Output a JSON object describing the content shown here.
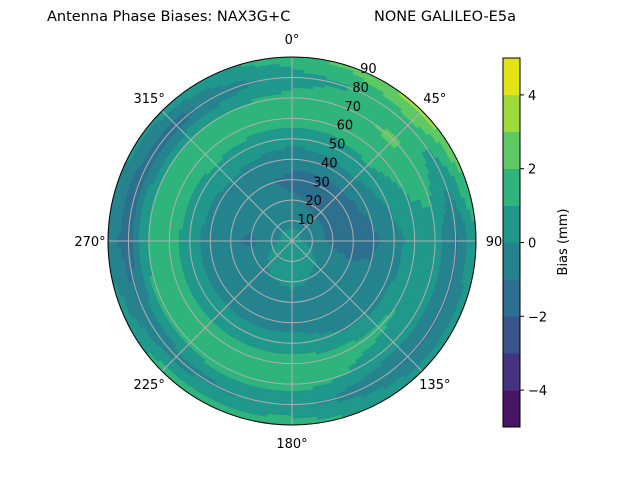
{
  "chart_data": {
    "type": "polar-contour",
    "title_left": "Antenna Phase Biases: NAX3G+C",
    "title_right": "NONE GALILEO-E5a",
    "theta_zero": "top",
    "theta_direction": "clockwise",
    "theta_tick_labels": [
      "0°",
      "45°",
      "90",
      "135°",
      "180°",
      "225°",
      "270°",
      "315°"
    ],
    "theta_ticks_deg": [
      0,
      45,
      90,
      135,
      180,
      225,
      270,
      315
    ],
    "r_ticks": [
      10,
      20,
      30,
      40,
      50,
      60,
      70,
      80,
      90
    ],
    "r_tick_labels": [
      "10",
      "20",
      "30",
      "40",
      "50",
      "60",
      "70",
      "80",
      "90"
    ],
    "rlim": [
      0,
      90
    ],
    "grid": true,
    "azimuth_deg": [
      0,
      45,
      90,
      135,
      180,
      225,
      270,
      315
    ],
    "zenith_deg": [
      0,
      10,
      20,
      30,
      40,
      50,
      60,
      70,
      80,
      90
    ],
    "bias_mm": [
      [
        0.5,
        0.5,
        0.5,
        0.5,
        0.5,
        0.5,
        0.5,
        0.5
      ],
      [
        -0.3,
        -0.5,
        -0.5,
        0.5,
        0.7,
        0.5,
        -0.3,
        -0.3
      ],
      [
        -0.8,
        -1.3,
        -1.2,
        -0.3,
        0.3,
        -0.2,
        -1.2,
        -0.5
      ],
      [
        -1.3,
        -1.4,
        -1.3,
        -0.6,
        -0.5,
        -0.5,
        -0.8,
        -0.5
      ],
      [
        -0.5,
        -0.5,
        -1.2,
        -0.5,
        -0.5,
        -0.5,
        -0.5,
        -0.2
      ],
      [
        0.3,
        0.8,
        -0.5,
        -0.3,
        0.5,
        0.5,
        0.5,
        0.8
      ],
      [
        1.5,
        1.5,
        0.5,
        1.2,
        1.5,
        1.5,
        1.5,
        1.5
      ],
      [
        1.3,
        2.2,
        0.5,
        0.5,
        1.5,
        1.5,
        1.2,
        1.0
      ],
      [
        0.5,
        1.5,
        -1.2,
        -1.2,
        0.3,
        -0.5,
        -1.5,
        -1.5
      ],
      [
        1.5,
        3.5,
        0.8,
        0.5,
        1.5,
        1.5,
        -0.5,
        0.5
      ]
    ],
    "levels": [
      -5,
      -4,
      -3,
      -2,
      -1,
      0,
      1,
      2,
      3,
      4,
      5
    ],
    "level_colors": [
      "#481467",
      "#46337f",
      "#3b528b",
      "#2d6f8e",
      "#25838e",
      "#1f988b",
      "#2fb47c",
      "#5ec962",
      "#9fda3a",
      "#e3e418"
    ],
    "colorbar": {
      "label": "Bias (mm)",
      "range": [
        -5,
        5
      ],
      "ticks": [
        4,
        2,
        0,
        -2,
        -4
      ],
      "tick_labels": [
        "4",
        "2",
        "0",
        "−2",
        "−4"
      ],
      "placement": "right"
    }
  }
}
